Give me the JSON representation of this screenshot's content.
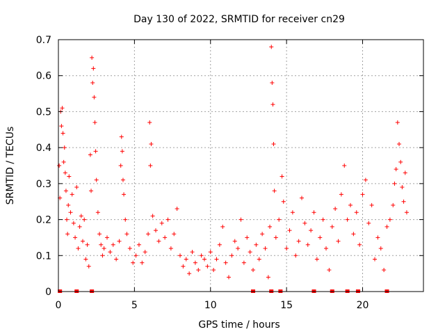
{
  "chart_data": {
    "type": "scatter",
    "title": "Day 130 of 2022, SRMTID for receiver cn29",
    "xlabel": "GPS time / hours",
    "ylabel": "SRMTID / TECUs",
    "xlim": [
      0,
      24
    ],
    "ylim": [
      0,
      0.7
    ],
    "xticks": [
      0,
      5,
      10,
      15,
      20
    ],
    "xtick_labels": [
      "0",
      "5",
      "10",
      "15",
      "20"
    ],
    "yticks": [
      0,
      0.1,
      0.2,
      0.3,
      0.4,
      0.5,
      0.6,
      0.7
    ],
    "ytick_labels": [
      "0",
      "0.1",
      "0.2",
      "0.3",
      "0.4",
      "0.5",
      "0.6",
      "0.7"
    ],
    "grid": true,
    "marker": "+",
    "color": "#ff0000",
    "series": [
      {
        "name": "SRMTID",
        "points": [
          [
            0.05,
            0.35
          ],
          [
            0.1,
            0.26
          ],
          [
            0.15,
            0.5
          ],
          [
            0.2,
            0.46
          ],
          [
            0.25,
            0.51
          ],
          [
            0.3,
            0.44
          ],
          [
            0.35,
            0.36
          ],
          [
            0.4,
            0.4
          ],
          [
            0.45,
            0.33
          ],
          [
            0.5,
            0.28
          ],
          [
            0.55,
            0.2
          ],
          [
            0.6,
            0.16
          ],
          [
            0.65,
            0.24
          ],
          [
            0.7,
            0.32
          ],
          [
            0.8,
            0.22
          ],
          [
            0.9,
            0.27
          ],
          [
            1.0,
            0.19
          ],
          [
            1.1,
            0.15
          ],
          [
            1.2,
            0.29
          ],
          [
            1.3,
            0.12
          ],
          [
            1.4,
            0.18
          ],
          [
            1.5,
            0.21
          ],
          [
            1.6,
            0.14
          ],
          [
            1.7,
            0.2
          ],
          [
            1.8,
            0.09
          ],
          [
            1.9,
            0.13
          ],
          [
            2.0,
            0.07
          ],
          [
            2.1,
            0.38
          ],
          [
            2.15,
            0.28
          ],
          [
            2.2,
            0.65
          ],
          [
            2.25,
            0.58
          ],
          [
            2.3,
            0.62
          ],
          [
            2.35,
            0.54
          ],
          [
            2.4,
            0.47
          ],
          [
            2.45,
            0.39
          ],
          [
            2.5,
            0.31
          ],
          [
            2.6,
            0.22
          ],
          [
            2.7,
            0.16
          ],
          [
            2.8,
            0.13
          ],
          [
            2.9,
            0.1
          ],
          [
            3.0,
            0.12
          ],
          [
            3.2,
            0.15
          ],
          [
            3.4,
            0.11
          ],
          [
            3.6,
            0.13
          ],
          [
            3.8,
            0.09
          ],
          [
            4.0,
            0.14
          ],
          [
            4.1,
            0.35
          ],
          [
            4.15,
            0.43
          ],
          [
            4.2,
            0.39
          ],
          [
            4.25,
            0.31
          ],
          [
            4.3,
            0.27
          ],
          [
            4.4,
            0.2
          ],
          [
            4.5,
            0.16
          ],
          [
            4.7,
            0.12
          ],
          [
            4.9,
            0.08
          ],
          [
            5.1,
            0.1
          ],
          [
            5.3,
            0.13
          ],
          [
            5.5,
            0.08
          ],
          [
            5.7,
            0.11
          ],
          [
            5.9,
            0.16
          ],
          [
            6.0,
            0.47
          ],
          [
            6.05,
            0.35
          ],
          [
            6.1,
            0.41
          ],
          [
            6.2,
            0.21
          ],
          [
            6.4,
            0.17
          ],
          [
            6.6,
            0.14
          ],
          [
            6.8,
            0.19
          ],
          [
            7.0,
            0.15
          ],
          [
            7.2,
            0.2
          ],
          [
            7.4,
            0.12
          ],
          [
            7.6,
            0.16
          ],
          [
            7.8,
            0.23
          ],
          [
            8.0,
            0.1
          ],
          [
            8.2,
            0.07
          ],
          [
            8.4,
            0.09
          ],
          [
            8.6,
            0.05
          ],
          [
            8.8,
            0.11
          ],
          [
            9.0,
            0.08
          ],
          [
            9.2,
            0.06
          ],
          [
            9.4,
            0.1
          ],
          [
            9.6,
            0.09
          ],
          [
            9.8,
            0.07
          ],
          [
            10.0,
            0.11
          ],
          [
            10.2,
            0.06
          ],
          [
            10.4,
            0.09
          ],
          [
            10.6,
            0.13
          ],
          [
            10.8,
            0.18
          ],
          [
            11.0,
            0.08
          ],
          [
            11.2,
            0.04
          ],
          [
            11.4,
            0.1
          ],
          [
            11.6,
            0.14
          ],
          [
            11.8,
            0.12
          ],
          [
            12.0,
            0.2
          ],
          [
            12.2,
            0.08
          ],
          [
            12.4,
            0.15
          ],
          [
            12.6,
            0.11
          ],
          [
            12.8,
            0.06
          ],
          [
            13.0,
            0.13
          ],
          [
            13.2,
            0.09
          ],
          [
            13.4,
            0.16
          ],
          [
            13.6,
            0.12
          ],
          [
            13.8,
            0.04
          ],
          [
            13.9,
            0.18
          ],
          [
            14.0,
            0.68
          ],
          [
            14.05,
            0.58
          ],
          [
            14.1,
            0.52
          ],
          [
            14.15,
            0.41
          ],
          [
            14.2,
            0.28
          ],
          [
            14.3,
            0.15
          ],
          [
            14.5,
            0.2
          ],
          [
            14.7,
            0.32
          ],
          [
            14.8,
            0.25
          ],
          [
            15.0,
            0.12
          ],
          [
            15.2,
            0.17
          ],
          [
            15.4,
            0.22
          ],
          [
            15.6,
            0.1
          ],
          [
            15.8,
            0.14
          ],
          [
            16.0,
            0.26
          ],
          [
            16.2,
            0.19
          ],
          [
            16.4,
            0.13
          ],
          [
            16.6,
            0.17
          ],
          [
            16.8,
            0.22
          ],
          [
            17.0,
            0.09
          ],
          [
            17.2,
            0.15
          ],
          [
            17.4,
            0.2
          ],
          [
            17.6,
            0.12
          ],
          [
            17.8,
            0.06
          ],
          [
            18.0,
            0.18
          ],
          [
            18.2,
            0.23
          ],
          [
            18.4,
            0.14
          ],
          [
            18.6,
            0.27
          ],
          [
            18.8,
            0.35
          ],
          [
            19.0,
            0.2
          ],
          [
            19.2,
            0.24
          ],
          [
            19.4,
            0.16
          ],
          [
            19.6,
            0.22
          ],
          [
            19.8,
            0.13
          ],
          [
            20.0,
            0.27
          ],
          [
            20.2,
            0.31
          ],
          [
            20.4,
            0.19
          ],
          [
            20.6,
            0.24
          ],
          [
            20.8,
            0.09
          ],
          [
            21.0,
            0.15
          ],
          [
            21.2,
            0.12
          ],
          [
            21.4,
            0.06
          ],
          [
            21.6,
            0.18
          ],
          [
            21.8,
            0.2
          ],
          [
            22.0,
            0.24
          ],
          [
            22.1,
            0.3
          ],
          [
            22.2,
            0.34
          ],
          [
            22.3,
            0.47
          ],
          [
            22.4,
            0.41
          ],
          [
            22.5,
            0.36
          ],
          [
            22.6,
            0.29
          ],
          [
            22.7,
            0.25
          ],
          [
            22.8,
            0.33
          ],
          [
            22.9,
            0.22
          ]
        ]
      }
    ],
    "bottom_markers": [
      0.1,
      1.2,
      2.2,
      12.8,
      14.0,
      14.6,
      16.8,
      18.0,
      19.0,
      19.7,
      21.6
    ]
  }
}
